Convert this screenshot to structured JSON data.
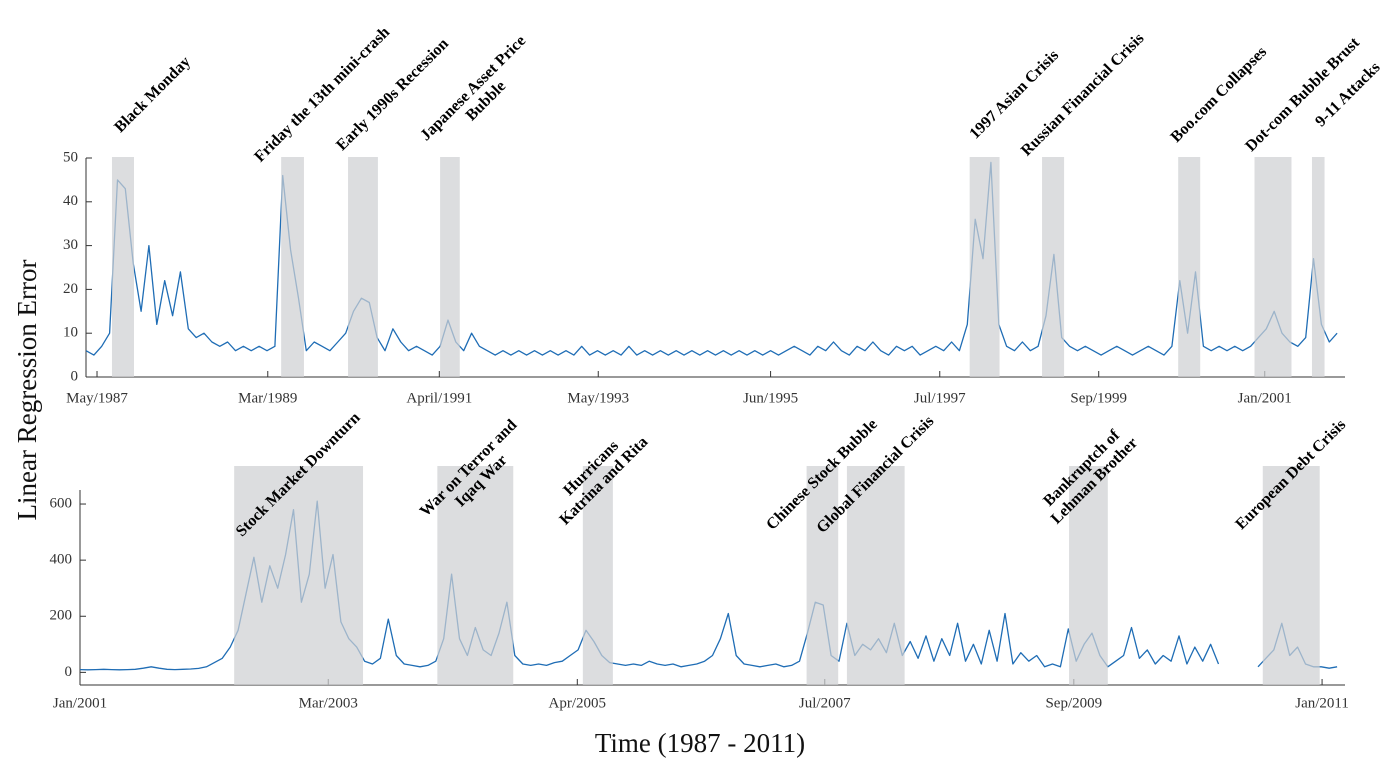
{
  "chart_data": [
    {
      "type": "line",
      "ylabel": "Linear Regression Error",
      "x": [
        0,
        1,
        2,
        3,
        4,
        5,
        6,
        7,
        8,
        9,
        10,
        11,
        12,
        13,
        14,
        15,
        16,
        17,
        18,
        19,
        20,
        21,
        22,
        23,
        24,
        25,
        26,
        27,
        28,
        29,
        30,
        31,
        32,
        33,
        34,
        35,
        36,
        37,
        38,
        39,
        40,
        41,
        42,
        43,
        44,
        45,
        46,
        47,
        48,
        49,
        50,
        51,
        52,
        53,
        54,
        55,
        56,
        57,
        58,
        59,
        60,
        61,
        62,
        63,
        64,
        65,
        66,
        67,
        68,
        69,
        70,
        71,
        72,
        73,
        74,
        75,
        76,
        77,
        78,
        79,
        80,
        81,
        82,
        83,
        84,
        85,
        86,
        87,
        88,
        89,
        90,
        91,
        92,
        93,
        94,
        95,
        96,
        97,
        98,
        99,
        100,
        101,
        102,
        103,
        104,
        105,
        106,
        107,
        108,
        109,
        110,
        111,
        112,
        113,
        114,
        115,
        116,
        117,
        118,
        119,
        120,
        121,
        122,
        123,
        124,
        125,
        126,
        127,
        128,
        129,
        130,
        131,
        132,
        133,
        134,
        135,
        136,
        137,
        138,
        139,
        140,
        141,
        142,
        143,
        144,
        145,
        146,
        147,
        148,
        149,
        150,
        151,
        152,
        153,
        154,
        155,
        156,
        157,
        158,
        159
      ],
      "values": [
        6,
        5,
        7,
        10,
        45,
        43,
        26,
        15,
        30,
        12,
        22,
        14,
        24,
        11,
        9,
        10,
        8,
        7,
        8,
        6,
        7,
        6,
        7,
        6,
        7,
        46,
        29,
        18,
        6,
        8,
        7,
        6,
        8,
        10,
        15,
        18,
        17,
        9,
        6,
        11,
        8,
        6,
        7,
        6,
        5,
        7,
        13,
        8,
        6,
        10,
        7,
        6,
        5,
        6,
        5,
        6,
        5,
        6,
        5,
        6,
        5,
        6,
        5,
        7,
        5,
        6,
        5,
        6,
        5,
        7,
        5,
        6,
        5,
        6,
        5,
        6,
        5,
        6,
        5,
        6,
        5,
        6,
        5,
        6,
        5,
        6,
        5,
        6,
        5,
        6,
        7,
        6,
        5,
        7,
        6,
        8,
        6,
        5,
        7,
        6,
        8,
        6,
        5,
        7,
        6,
        7,
        5,
        6,
        7,
        6,
        8,
        6,
        12,
        36,
        27,
        49,
        12,
        7,
        6,
        8,
        6,
        7,
        14,
        28,
        9,
        7,
        6,
        7,
        6,
        5,
        6,
        7,
        6,
        5,
        6,
        7,
        6,
        5,
        7,
        22,
        10,
        24,
        7,
        6,
        7,
        6,
        7,
        6,
        7,
        9,
        11,
        15,
        10,
        8,
        7,
        9,
        27,
        12,
        8,
        10
      ],
      "color": "#1f6db5",
      "shade_color": "#cfd0d2",
      "xlim": [
        0,
        160
      ],
      "xticks": [
        {
          "value": 1.4,
          "label": "May/1987"
        },
        {
          "value": 23.1,
          "label": "Mar/1989"
        },
        {
          "value": 44.9,
          "label": "April/1991"
        },
        {
          "value": 65.1,
          "label": "May/1993"
        },
        {
          "value": 87,
          "label": "Jun/1995"
        },
        {
          "value": 108.5,
          "label": "Jul/1997"
        },
        {
          "value": 128.7,
          "label": "Sep/1999"
        },
        {
          "value": 149.8,
          "label": "Jan/2001"
        }
      ],
      "ylim": [
        0,
        50
      ],
      "yticks": [
        0,
        10,
        20,
        30,
        40,
        50
      ],
      "annotations": [
        {
          "label": [
            "Black Monday"
          ],
          "start": 3.3,
          "end": 6.1
        },
        {
          "label": [
            "Friday the 13th mini-crash"
          ],
          "start": 24.8,
          "end": 27.7
        },
        {
          "label": [
            "Early 1990s Recession"
          ],
          "start": 33.3,
          "end": 37.1
        },
        {
          "label": [
            "Japanese Asset Price",
            "Bubble"
          ],
          "start": 45,
          "end": 47.5
        },
        {
          "label": [
            "1997 Asian Crisis"
          ],
          "start": 112.3,
          "end": 116.1
        },
        {
          "label": [
            "Russian Financial Crisis"
          ],
          "start": 121.5,
          "end": 124.3
        },
        {
          "label": [
            "Boo.com Collapses"
          ],
          "start": 138.8,
          "end": 141.6
        },
        {
          "label": [
            "Dot-com Bubble Brust"
          ],
          "start": 148.5,
          "end": 153.2
        },
        {
          "label": [
            "9-11 Attacks"
          ],
          "start": 155.8,
          "end": 157.4
        }
      ]
    },
    {
      "type": "line",
      "xlabel": "Time (1987 - 2011)",
      "x": [
        0,
        1,
        2,
        3,
        4,
        5,
        6,
        7,
        8,
        9,
        10,
        11,
        12,
        13,
        14,
        15,
        16,
        17,
        18,
        19,
        20,
        21,
        22,
        23,
        24,
        25,
        26,
        27,
        28,
        29,
        30,
        31,
        32,
        33,
        34,
        35,
        36,
        37,
        38,
        39,
        40,
        41,
        42,
        43,
        44,
        45,
        46,
        47,
        48,
        49,
        50,
        51,
        52,
        53,
        54,
        55,
        56,
        57,
        58,
        59,
        60,
        61,
        62,
        63,
        64,
        65,
        66,
        67,
        68,
        69,
        70,
        71,
        72,
        73,
        74,
        75,
        76,
        77,
        78,
        79,
        80,
        81,
        82,
        83,
        84,
        85,
        86,
        87,
        88,
        89,
        90,
        91,
        92,
        93,
        94,
        95,
        96,
        97,
        98,
        99,
        100,
        101,
        102,
        103,
        104,
        105,
        106,
        107,
        108,
        109,
        110,
        111,
        112,
        113,
        114,
        115,
        116,
        117,
        118,
        119,
        120,
        121,
        122,
        123,
        124,
        125,
        126,
        127,
        128,
        129,
        130,
        131,
        132,
        133,
        134,
        135,
        136,
        137,
        138,
        139,
        140,
        141,
        142,
        143,
        144,
        145,
        146,
        147,
        148,
        149,
        150,
        151,
        152,
        153,
        154,
        155,
        156,
        157,
        158,
        159
      ],
      "values": [
        10,
        9,
        10,
        11,
        10,
        9,
        10,
        11,
        15,
        20,
        15,
        11,
        10,
        11,
        12,
        14,
        20,
        35,
        50,
        90,
        150,
        280,
        410,
        250,
        380,
        300,
        420,
        580,
        250,
        350,
        610,
        300,
        420,
        180,
        120,
        90,
        40,
        30,
        50,
        190,
        60,
        30,
        25,
        20,
        25,
        40,
        120,
        350,
        120,
        60,
        160,
        80,
        60,
        140,
        250,
        60,
        30,
        25,
        30,
        25,
        35,
        40,
        60,
        80,
        150,
        110,
        60,
        35,
        30,
        25,
        30,
        25,
        40,
        30,
        25,
        30,
        20,
        25,
        30,
        40,
        60,
        120,
        210,
        60,
        30,
        25,
        20,
        25,
        30,
        20,
        25,
        40,
        140,
        250,
        240,
        60,
        40,
        175,
        60,
        100,
        80,
        120,
        70,
        175,
        60,
        110,
        50,
        130,
        40,
        120,
        60,
        175,
        40,
        100,
        30,
        150,
        40,
        210,
        30,
        70,
        40,
        60,
        20,
        30,
        20,
        155,
        40,
        100,
        140,
        60,
        20,
        40,
        60,
        160,
        50,
        80,
        30,
        60,
        40,
        130,
        30,
        90,
        40,
        100,
        30,
        null,
        40,
        null,
        null,
        20,
        50,
        80,
        175,
        60,
        90,
        30,
        20,
        20,
        15,
        20
      ],
      "color": "#1f6db5",
      "shade_color": "#cfd0d2",
      "xlim": [
        0,
        160
      ],
      "xticks": [
        {
          "value": 0,
          "label": "Jan/2001"
        },
        {
          "value": 31.4,
          "label": "Mar/2003"
        },
        {
          "value": 62.9,
          "label": "Apr/2005"
        },
        {
          "value": 94.2,
          "label": "Jul/2007"
        },
        {
          "value": 125.7,
          "label": "Sep/2009"
        },
        {
          "value": 157.1,
          "label": "Jan/2011"
        }
      ],
      "ylim": [
        -45,
        650
      ],
      "yticks": [
        0,
        200,
        400,
        600
      ],
      "annotations": [
        {
          "label": [
            "Stock Market Downturn"
          ],
          "start": 19.5,
          "end": 35.8
        },
        {
          "label": [
            "War on Terror and",
            "Iqaq War"
          ],
          "start": 45.2,
          "end": 54.8
        },
        {
          "label": [
            "Hurricans",
            "Katrina and Rita"
          ],
          "start": 63.6,
          "end": 67.4
        },
        {
          "label": [
            "Chinese Stock Bubble"
          ],
          "start": 91.9,
          "end": 95.9
        },
        {
          "label": [
            "Global Financial Crisis"
          ],
          "start": 97,
          "end": 104.3
        },
        {
          "label": [
            "Bankruptch of",
            "Lehman Brother"
          ],
          "start": 125.1,
          "end": 130
        },
        {
          "label": [
            "European Debt Crisis"
          ],
          "start": 149.6,
          "end": 156.8
        }
      ]
    }
  ]
}
